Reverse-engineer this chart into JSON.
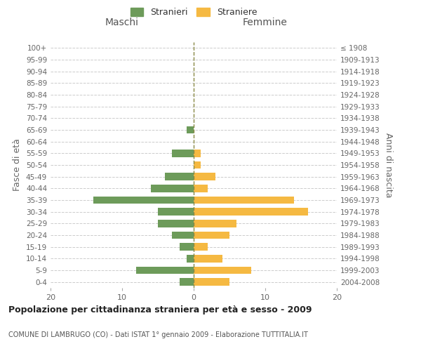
{
  "age_groups": [
    "100+",
    "95-99",
    "90-94",
    "85-89",
    "80-84",
    "75-79",
    "70-74",
    "65-69",
    "60-64",
    "55-59",
    "50-54",
    "45-49",
    "40-44",
    "35-39",
    "30-34",
    "25-29",
    "20-24",
    "15-19",
    "10-14",
    "5-9",
    "0-4"
  ],
  "birth_years": [
    "≤ 1908",
    "1909-1913",
    "1914-1918",
    "1919-1923",
    "1924-1928",
    "1929-1933",
    "1934-1938",
    "1939-1943",
    "1944-1948",
    "1949-1953",
    "1954-1958",
    "1959-1963",
    "1964-1968",
    "1969-1973",
    "1974-1978",
    "1979-1983",
    "1984-1988",
    "1989-1993",
    "1994-1998",
    "1999-2003",
    "2004-2008"
  ],
  "stranieri": [
    0,
    0,
    0,
    0,
    0,
    0,
    0,
    1,
    0,
    3,
    0,
    4,
    6,
    14,
    5,
    5,
    3,
    2,
    1,
    8,
    2
  ],
  "straniere": [
    0,
    0,
    0,
    0,
    0,
    0,
    0,
    0,
    0,
    1,
    1,
    3,
    2,
    14,
    16,
    6,
    5,
    2,
    4,
    8,
    5
  ],
  "color_stranieri": "#6d9b5a",
  "color_straniere": "#f5b942",
  "xlim": 20,
  "title": "Popolazione per cittadinanza straniera per età e sesso - 2009",
  "subtitle": "COMUNE DI LAMBRUGO (CO) - Dati ISTAT 1° gennaio 2009 - Elaborazione TUTTITALIA.IT",
  "ylabel_left": "Fasce di età",
  "ylabel_right": "Anni di nascita",
  "label_maschi": "Maschi",
  "label_femmine": "Femmine",
  "legend_stranieri": "Stranieri",
  "legend_straniere": "Straniere",
  "bg_color": "#ffffff",
  "grid_color": "#cccccc"
}
